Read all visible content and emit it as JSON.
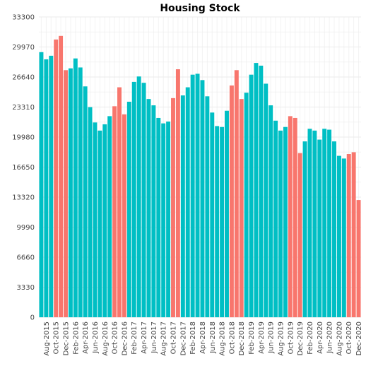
{
  "chart_data": {
    "type": "bar",
    "title": "Housing Stock",
    "xlabel": "",
    "ylabel": "",
    "ylim": [
      0,
      33300
    ],
    "yticks": [
      0,
      3330,
      6660,
      9990,
      13320,
      16650,
      19980,
      23310,
      26640,
      29970,
      33300
    ],
    "grid": true,
    "legend": "none",
    "colors": {
      "normal": "#00BFC4",
      "highlight": "#F8766D"
    },
    "categories": [
      "Jul-2015",
      "Aug-2015",
      "Sep-2015",
      "Oct-2015",
      "Nov-2015",
      "Dec-2015",
      "Jan-2016",
      "Feb-2016",
      "Mar-2016",
      "Apr-2016",
      "May-2016",
      "Jun-2016",
      "Jul-2016",
      "Aug-2016",
      "Sep-2016",
      "Oct-2016",
      "Nov-2016",
      "Dec-2016",
      "Jan-2017",
      "Feb-2017",
      "Mar-2017",
      "Apr-2017",
      "May-2017",
      "Jun-2017",
      "Jul-2017",
      "Aug-2017",
      "Sep-2017",
      "Oct-2017",
      "Nov-2017",
      "Dec-2017",
      "Jan-2018",
      "Feb-2018",
      "Mar-2018",
      "Apr-2018",
      "May-2018",
      "Jun-2018",
      "Jul-2018",
      "Aug-2018",
      "Sep-2018",
      "Oct-2018",
      "Nov-2018",
      "Dec-2018",
      "Jan-2019",
      "Feb-2019",
      "Mar-2019",
      "Apr-2019",
      "May-2019",
      "Jun-2019",
      "Jul-2019",
      "Aug-2019",
      "Sep-2019",
      "Oct-2019",
      "Nov-2019",
      "Dec-2019",
      "Jan-2020",
      "Feb-2020",
      "Mar-2020",
      "Apr-2020",
      "May-2020",
      "Jun-2020",
      "Jul-2020",
      "Aug-2020",
      "Sep-2020",
      "Oct-2020",
      "Nov-2020",
      "Dec-2020"
    ],
    "tick_labels": [
      "Aug-2015",
      "Oct-2015",
      "Dec-2015",
      "Feb-2016",
      "Apr-2016",
      "Jun-2016",
      "Aug-2016",
      "Oct-2016",
      "Dec-2016",
      "Feb-2017",
      "Apr-2017",
      "Jun-2017",
      "Aug-2017",
      "Oct-2017",
      "Dec-2017",
      "Feb-2018",
      "Apr-2018",
      "Jun-2018",
      "Aug-2018",
      "Oct-2018",
      "Dec-2018",
      "Feb-2019",
      "Apr-2019",
      "Jun-2019",
      "Aug-2019",
      "Oct-2019",
      "Dec-2019",
      "Feb-2020",
      "Apr-2020",
      "Jun-2020",
      "Aug-2020",
      "Oct-2020",
      "Dec-2020"
    ],
    "values": [
      29400,
      28600,
      29000,
      30800,
      31200,
      27400,
      27600,
      28700,
      27700,
      25600,
      23300,
      21600,
      20700,
      21400,
      22300,
      23400,
      25500,
      22500,
      23900,
      26100,
      26700,
      26000,
      24200,
      23500,
      22100,
      21500,
      21700,
      24300,
      27500,
      24600,
      25500,
      26900,
      27000,
      26300,
      24500,
      22700,
      21200,
      21100,
      22900,
      25700,
      27400,
      24200,
      24900,
      26900,
      28200,
      27900,
      25900,
      23500,
      21800,
      20700,
      21100,
      22300,
      22100,
      18200,
      19500,
      20900,
      20700,
      19700,
      20900,
      20800,
      19500,
      17900,
      17600,
      18100,
      18300,
      13000
    ],
    "highlight": [
      false,
      false,
      false,
      true,
      true,
      true,
      false,
      false,
      false,
      false,
      false,
      false,
      false,
      false,
      false,
      true,
      true,
      true,
      false,
      false,
      false,
      false,
      false,
      false,
      false,
      false,
      false,
      true,
      true,
      false,
      false,
      false,
      false,
      false,
      false,
      false,
      false,
      false,
      false,
      true,
      true,
      true,
      false,
      false,
      false,
      false,
      false,
      false,
      false,
      false,
      false,
      true,
      true,
      true,
      false,
      false,
      false,
      false,
      false,
      false,
      false,
      false,
      false,
      true,
      true,
      true
    ]
  }
}
